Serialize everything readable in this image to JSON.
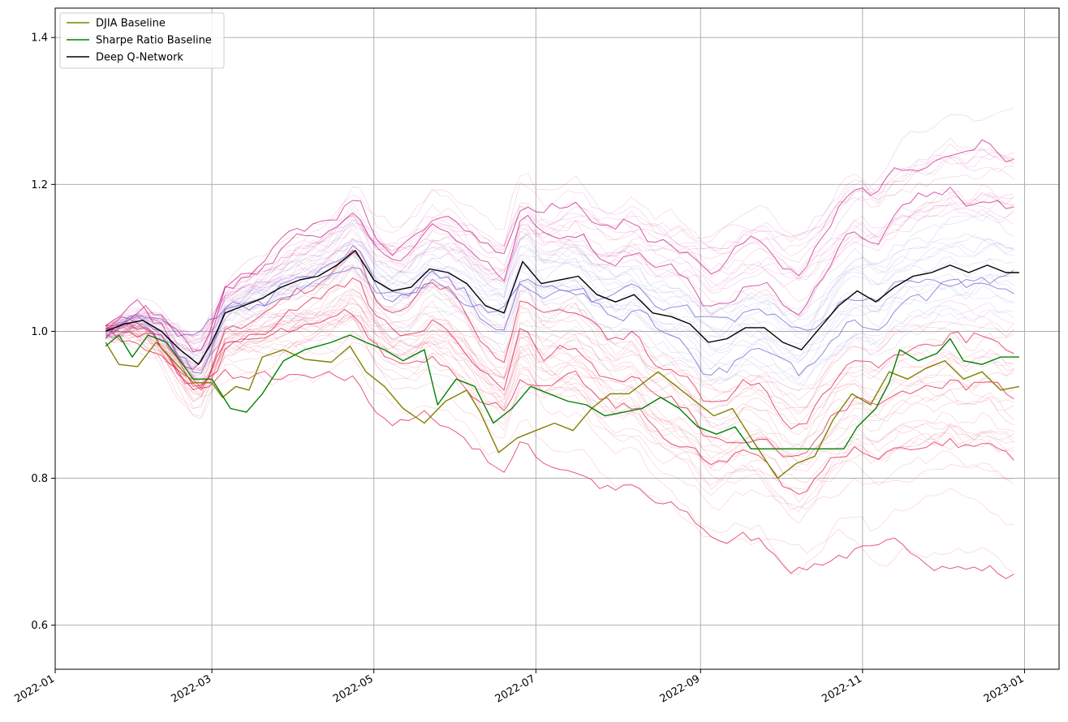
{
  "chart_data": {
    "type": "line",
    "title": "",
    "xlabel": "",
    "ylabel": "",
    "x_start": "2022-01-20",
    "x_end": "2022-12-30",
    "xlim": [
      "2022-01-01",
      "2023-01-14"
    ],
    "ylim": [
      0.54,
      1.44
    ],
    "x_ticks": [
      "2022-01",
      "2022-03",
      "2022-05",
      "2022-07",
      "2022-09",
      "2022-11",
      "2023-01"
    ],
    "y_ticks": [
      "0.6",
      "0.8",
      "1.0",
      "1.2",
      "1.4"
    ],
    "grid": true,
    "legend_position": "upper-left",
    "series": [
      {
        "name": "DJIA Baseline",
        "color": "#808000",
        "points": [
          [
            "2022-01-20",
            0.985
          ],
          [
            "2022-01-25",
            0.955
          ],
          [
            "2022-02-01",
            0.952
          ],
          [
            "2022-02-08",
            0.985
          ],
          [
            "2022-02-12",
            0.97
          ],
          [
            "2022-02-22",
            0.93
          ],
          [
            "2022-03-01",
            0.93
          ],
          [
            "2022-03-05",
            0.91
          ],
          [
            "2022-03-10",
            0.925
          ],
          [
            "2022-03-15",
            0.92
          ],
          [
            "2022-03-20",
            0.965
          ],
          [
            "2022-03-28",
            0.975
          ],
          [
            "2022-04-05",
            0.962
          ],
          [
            "2022-04-15",
            0.958
          ],
          [
            "2022-04-22",
            0.98
          ],
          [
            "2022-04-28",
            0.945
          ],
          [
            "2022-05-05",
            0.925
          ],
          [
            "2022-05-12",
            0.895
          ],
          [
            "2022-05-20",
            0.875
          ],
          [
            "2022-05-28",
            0.905
          ],
          [
            "2022-06-05",
            0.92
          ],
          [
            "2022-06-10",
            0.89
          ],
          [
            "2022-06-17",
            0.835
          ],
          [
            "2022-06-24",
            0.855
          ],
          [
            "2022-07-01",
            0.865
          ],
          [
            "2022-07-08",
            0.875
          ],
          [
            "2022-07-15",
            0.865
          ],
          [
            "2022-07-22",
            0.895
          ],
          [
            "2022-07-29",
            0.915
          ],
          [
            "2022-08-05",
            0.915
          ],
          [
            "2022-08-16",
            0.945
          ],
          [
            "2022-08-23",
            0.925
          ],
          [
            "2022-08-30",
            0.905
          ],
          [
            "2022-09-06",
            0.885
          ],
          [
            "2022-09-13",
            0.895
          ],
          [
            "2022-09-20",
            0.855
          ],
          [
            "2022-09-30",
            0.8
          ],
          [
            "2022-10-07",
            0.82
          ],
          [
            "2022-10-14",
            0.83
          ],
          [
            "2022-10-21",
            0.88
          ],
          [
            "2022-10-28",
            0.915
          ],
          [
            "2022-11-04",
            0.9
          ],
          [
            "2022-11-11",
            0.945
          ],
          [
            "2022-11-18",
            0.935
          ],
          [
            "2022-11-25",
            0.95
          ],
          [
            "2022-12-02",
            0.96
          ],
          [
            "2022-12-09",
            0.935
          ],
          [
            "2022-12-16",
            0.945
          ],
          [
            "2022-12-23",
            0.92
          ],
          [
            "2022-12-30",
            0.925
          ]
        ]
      },
      {
        "name": "Sharpe Ratio Baseline",
        "color": "#008000",
        "points": [
          [
            "2022-01-20",
            0.98
          ],
          [
            "2022-01-25",
            0.995
          ],
          [
            "2022-01-30",
            0.965
          ],
          [
            "2022-02-05",
            0.995
          ],
          [
            "2022-02-12",
            0.985
          ],
          [
            "2022-02-22",
            0.935
          ],
          [
            "2022-03-01",
            0.935
          ],
          [
            "2022-03-08",
            0.895
          ],
          [
            "2022-03-14",
            0.89
          ],
          [
            "2022-03-20",
            0.915
          ],
          [
            "2022-03-28",
            0.96
          ],
          [
            "2022-04-05",
            0.975
          ],
          [
            "2022-04-15",
            0.985
          ],
          [
            "2022-04-22",
            0.995
          ],
          [
            "2022-04-28",
            0.985
          ],
          [
            "2022-05-05",
            0.975
          ],
          [
            "2022-05-12",
            0.96
          ],
          [
            "2022-05-20",
            0.975
          ],
          [
            "2022-05-25",
            0.9
          ],
          [
            "2022-06-01",
            0.935
          ],
          [
            "2022-06-08",
            0.925
          ],
          [
            "2022-06-15",
            0.875
          ],
          [
            "2022-06-22",
            0.895
          ],
          [
            "2022-06-29",
            0.925
          ],
          [
            "2022-07-06",
            0.915
          ],
          [
            "2022-07-13",
            0.905
          ],
          [
            "2022-07-20",
            0.9
          ],
          [
            "2022-07-27",
            0.885
          ],
          [
            "2022-08-03",
            0.89
          ],
          [
            "2022-08-10",
            0.895
          ],
          [
            "2022-08-17",
            0.91
          ],
          [
            "2022-08-24",
            0.895
          ],
          [
            "2022-08-31",
            0.87
          ],
          [
            "2022-09-07",
            0.86
          ],
          [
            "2022-09-14",
            0.87
          ],
          [
            "2022-09-20",
            0.84
          ],
          [
            "2022-10-25",
            0.84
          ],
          [
            "2022-10-30",
            0.87
          ],
          [
            "2022-11-06",
            0.895
          ],
          [
            "2022-11-11",
            0.93
          ],
          [
            "2022-11-15",
            0.975
          ],
          [
            "2022-11-22",
            0.96
          ],
          [
            "2022-11-29",
            0.97
          ],
          [
            "2022-12-04",
            0.99
          ],
          [
            "2022-12-09",
            0.96
          ],
          [
            "2022-12-16",
            0.955
          ],
          [
            "2022-12-23",
            0.965
          ],
          [
            "2022-12-30",
            0.965
          ]
        ]
      },
      {
        "name": "Deep Q-Network",
        "color": "#000000",
        "points": [
          [
            "2022-01-20",
            1.0
          ],
          [
            "2022-01-27",
            1.01
          ],
          [
            "2022-02-03",
            1.015
          ],
          [
            "2022-02-10",
            1.0
          ],
          [
            "2022-02-17",
            0.975
          ],
          [
            "2022-02-24",
            0.955
          ],
          [
            "2022-03-01",
            0.985
          ],
          [
            "2022-03-06",
            1.025
          ],
          [
            "2022-03-13",
            1.035
          ],
          [
            "2022-03-20",
            1.045
          ],
          [
            "2022-03-27",
            1.06
          ],
          [
            "2022-04-03",
            1.07
          ],
          [
            "2022-04-10",
            1.075
          ],
          [
            "2022-04-17",
            1.09
          ],
          [
            "2022-04-24",
            1.11
          ],
          [
            "2022-05-01",
            1.07
          ],
          [
            "2022-05-08",
            1.055
          ],
          [
            "2022-05-15",
            1.06
          ],
          [
            "2022-05-22",
            1.085
          ],
          [
            "2022-05-29",
            1.08
          ],
          [
            "2022-06-05",
            1.065
          ],
          [
            "2022-06-12",
            1.035
          ],
          [
            "2022-06-19",
            1.025
          ],
          [
            "2022-06-26",
            1.095
          ],
          [
            "2022-07-03",
            1.065
          ],
          [
            "2022-07-10",
            1.07
          ],
          [
            "2022-07-17",
            1.075
          ],
          [
            "2022-07-24",
            1.05
          ],
          [
            "2022-07-31",
            1.04
          ],
          [
            "2022-08-07",
            1.05
          ],
          [
            "2022-08-14",
            1.025
          ],
          [
            "2022-08-21",
            1.02
          ],
          [
            "2022-08-28",
            1.01
          ],
          [
            "2022-09-04",
            0.985
          ],
          [
            "2022-09-11",
            0.99
          ],
          [
            "2022-09-18",
            1.005
          ],
          [
            "2022-09-25",
            1.005
          ],
          [
            "2022-10-02",
            0.985
          ],
          [
            "2022-10-09",
            0.975
          ],
          [
            "2022-10-16",
            1.005
          ],
          [
            "2022-10-23",
            1.035
          ],
          [
            "2022-10-30",
            1.055
          ],
          [
            "2022-11-06",
            1.04
          ],
          [
            "2022-11-13",
            1.06
          ],
          [
            "2022-11-20",
            1.075
          ],
          [
            "2022-11-27",
            1.08
          ],
          [
            "2022-12-04",
            1.09
          ],
          [
            "2022-12-11",
            1.08
          ],
          [
            "2022-12-18",
            1.09
          ],
          [
            "2022-12-25",
            1.08
          ],
          [
            "2022-12-30",
            1.08
          ]
        ]
      }
    ]
  }
}
